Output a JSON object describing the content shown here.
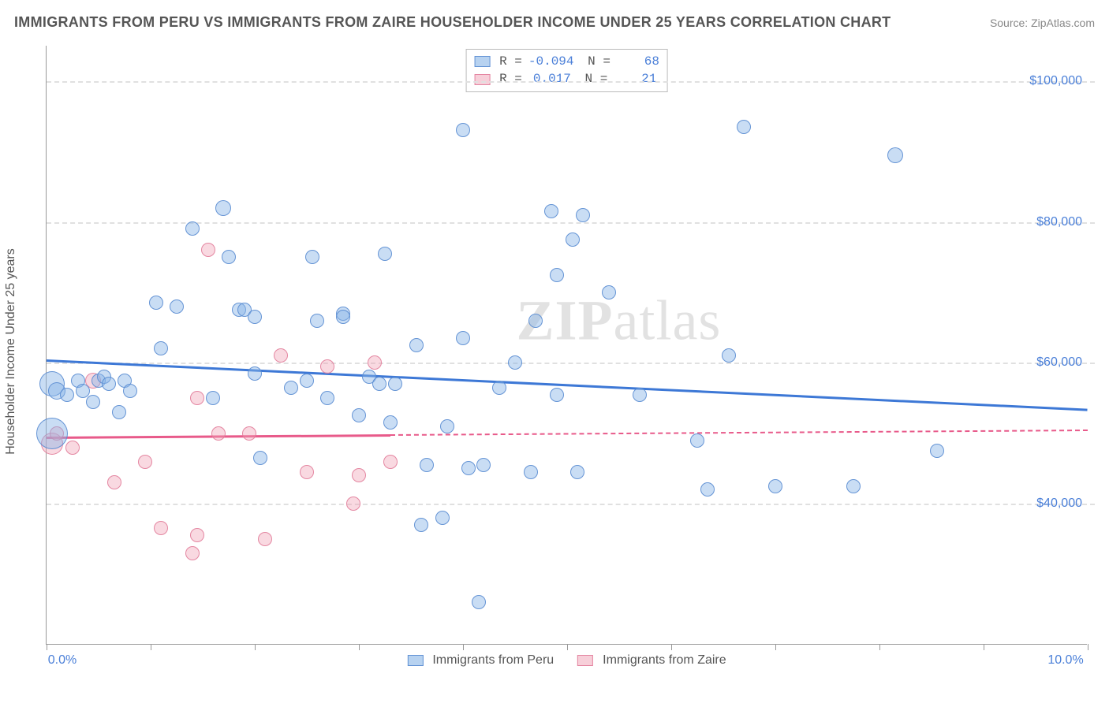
{
  "title": "IMMIGRANTS FROM PERU VS IMMIGRANTS FROM ZAIRE HOUSEHOLDER INCOME UNDER 25 YEARS CORRELATION CHART",
  "source_label": "Source: ",
  "source_name": "ZipAtlas.com",
  "y_axis_label": "Householder Income Under 25 years",
  "watermark_a": "ZIP",
  "watermark_b": "atlas",
  "chart": {
    "type": "scatter",
    "xlim": [
      0,
      10
    ],
    "ylim": [
      20000,
      105000
    ],
    "x_ticks": [
      0,
      1,
      2,
      3,
      4,
      5,
      6,
      7,
      8,
      9,
      10
    ],
    "x_tick_labels": {
      "0": "0.0%",
      "10": "10.0%"
    },
    "y_gridlines": [
      40000,
      60000,
      80000,
      100000
    ],
    "y_tick_labels": {
      "40000": "$40,000",
      "60000": "$60,000",
      "80000": "$80,000",
      "100000": "$100,000"
    },
    "background_color": "#ffffff",
    "grid_color": "#e0e0e0",
    "axis_color": "#999999"
  },
  "series": {
    "peru": {
      "label": "Immigrants from Peru",
      "color_fill": "rgba(135,180,230,0.45)",
      "color_stroke": "rgba(90,140,210,0.9)",
      "R": "-0.094",
      "N": "68",
      "trend": {
        "x1": 0,
        "y1": 60500,
        "x2": 10,
        "y2": 53500,
        "color": "#3d78d6",
        "dash_after_x": 10
      },
      "points": [
        {
          "x": 0.05,
          "y": 57000,
          "r": 16
        },
        {
          "x": 0.05,
          "y": 50000,
          "r": 20
        },
        {
          "x": 0.1,
          "y": 56000,
          "r": 11
        },
        {
          "x": 0.3,
          "y": 57500,
          "r": 9
        },
        {
          "x": 0.35,
          "y": 56000,
          "r": 9
        },
        {
          "x": 0.45,
          "y": 54500,
          "r": 9
        },
        {
          "x": 0.5,
          "y": 57500,
          "r": 9
        },
        {
          "x": 0.55,
          "y": 58000,
          "r": 9
        },
        {
          "x": 0.6,
          "y": 57000,
          "r": 9
        },
        {
          "x": 0.7,
          "y": 53000,
          "r": 9
        },
        {
          "x": 0.75,
          "y": 57500,
          "r": 9
        },
        {
          "x": 0.8,
          "y": 56000,
          "r": 9
        },
        {
          "x": 1.05,
          "y": 68500,
          "r": 9
        },
        {
          "x": 1.1,
          "y": 62000,
          "r": 9
        },
        {
          "x": 1.25,
          "y": 68000,
          "r": 9
        },
        {
          "x": 1.4,
          "y": 79000,
          "r": 9
        },
        {
          "x": 1.6,
          "y": 55000,
          "r": 9
        },
        {
          "x": 1.7,
          "y": 82000,
          "r": 10
        },
        {
          "x": 1.75,
          "y": 75000,
          "r": 9
        },
        {
          "x": 1.85,
          "y": 67500,
          "r": 9
        },
        {
          "x": 1.9,
          "y": 67500,
          "r": 9
        },
        {
          "x": 2.0,
          "y": 58500,
          "r": 9
        },
        {
          "x": 2.05,
          "y": 46500,
          "r": 9
        },
        {
          "x": 2.0,
          "y": 66500,
          "r": 9
        },
        {
          "x": 2.35,
          "y": 56500,
          "r": 9
        },
        {
          "x": 2.5,
          "y": 57500,
          "r": 9
        },
        {
          "x": 2.55,
          "y": 75000,
          "r": 9
        },
        {
          "x": 2.6,
          "y": 66000,
          "r": 9
        },
        {
          "x": 2.7,
          "y": 55000,
          "r": 9
        },
        {
          "x": 2.85,
          "y": 67000,
          "r": 9
        },
        {
          "x": 2.85,
          "y": 66500,
          "r": 9
        },
        {
          "x": 3.0,
          "y": 52500,
          "r": 9
        },
        {
          "x": 3.1,
          "y": 58000,
          "r": 9
        },
        {
          "x": 3.2,
          "y": 57000,
          "r": 9
        },
        {
          "x": 3.25,
          "y": 75500,
          "r": 9
        },
        {
          "x": 3.3,
          "y": 51500,
          "r": 9
        },
        {
          "x": 3.35,
          "y": 57000,
          "r": 9
        },
        {
          "x": 3.55,
          "y": 62500,
          "r": 9
        },
        {
          "x": 3.6,
          "y": 37000,
          "r": 9
        },
        {
          "x": 3.65,
          "y": 45500,
          "r": 9
        },
        {
          "x": 3.8,
          "y": 38000,
          "r": 9
        },
        {
          "x": 3.85,
          "y": 51000,
          "r": 9
        },
        {
          "x": 4.0,
          "y": 63500,
          "r": 9
        },
        {
          "x": 4.0,
          "y": 93000,
          "r": 9
        },
        {
          "x": 4.05,
          "y": 45000,
          "r": 9
        },
        {
          "x": 4.15,
          "y": 26000,
          "r": 9
        },
        {
          "x": 4.2,
          "y": 45500,
          "r": 9
        },
        {
          "x": 4.35,
          "y": 56500,
          "r": 9
        },
        {
          "x": 4.5,
          "y": 60000,
          "r": 9
        },
        {
          "x": 4.65,
          "y": 44500,
          "r": 9
        },
        {
          "x": 4.7,
          "y": 66000,
          "r": 9
        },
        {
          "x": 4.85,
          "y": 81500,
          "r": 9
        },
        {
          "x": 4.9,
          "y": 72500,
          "r": 9
        },
        {
          "x": 4.9,
          "y": 55500,
          "r": 9
        },
        {
          "x": 5.05,
          "y": 77500,
          "r": 9
        },
        {
          "x": 5.1,
          "y": 44500,
          "r": 9
        },
        {
          "x": 5.15,
          "y": 81000,
          "r": 9
        },
        {
          "x": 5.4,
          "y": 70000,
          "r": 9
        },
        {
          "x": 5.7,
          "y": 55500,
          "r": 9
        },
        {
          "x": 6.25,
          "y": 49000,
          "r": 9
        },
        {
          "x": 6.35,
          "y": 42000,
          "r": 9
        },
        {
          "x": 6.55,
          "y": 61000,
          "r": 9
        },
        {
          "x": 6.7,
          "y": 93500,
          "r": 9
        },
        {
          "x": 7.0,
          "y": 42500,
          "r": 9
        },
        {
          "x": 7.75,
          "y": 42500,
          "r": 9
        },
        {
          "x": 8.15,
          "y": 89500,
          "r": 10
        },
        {
          "x": 8.55,
          "y": 47500,
          "r": 9
        },
        {
          "x": 0.2,
          "y": 55500,
          "r": 9
        }
      ]
    },
    "zaire": {
      "label": "Immigrants from Zaire",
      "color_fill": "rgba(240,160,180,0.4)",
      "color_stroke": "rgba(225,120,150,0.85)",
      "R": "0.017",
      "N": "21",
      "trend": {
        "x1": 0,
        "y1": 49500,
        "x2": 10,
        "y2": 50500,
        "color": "#e85a8a",
        "dash_after_x": 3.3
      },
      "points": [
        {
          "x": 0.05,
          "y": 48500,
          "r": 14
        },
        {
          "x": 0.1,
          "y": 50000,
          "r": 9
        },
        {
          "x": 0.25,
          "y": 48000,
          "r": 9
        },
        {
          "x": 0.45,
          "y": 57500,
          "r": 10
        },
        {
          "x": 0.65,
          "y": 43000,
          "r": 9
        },
        {
          "x": 0.95,
          "y": 46000,
          "r": 9
        },
        {
          "x": 1.1,
          "y": 36500,
          "r": 9
        },
        {
          "x": 1.4,
          "y": 33000,
          "r": 9
        },
        {
          "x": 1.45,
          "y": 55000,
          "r": 9
        },
        {
          "x": 1.45,
          "y": 35500,
          "r": 9
        },
        {
          "x": 1.55,
          "y": 76000,
          "r": 9
        },
        {
          "x": 1.65,
          "y": 50000,
          "r": 9
        },
        {
          "x": 1.95,
          "y": 50000,
          "r": 9
        },
        {
          "x": 2.1,
          "y": 35000,
          "r": 9
        },
        {
          "x": 2.25,
          "y": 61000,
          "r": 9
        },
        {
          "x": 2.5,
          "y": 44500,
          "r": 9
        },
        {
          "x": 2.7,
          "y": 59500,
          "r": 9
        },
        {
          "x": 2.95,
          "y": 40000,
          "r": 9
        },
        {
          "x": 3.0,
          "y": 44000,
          "r": 9
        },
        {
          "x": 3.15,
          "y": 60000,
          "r": 9
        },
        {
          "x": 3.3,
          "y": 46000,
          "r": 9
        }
      ]
    }
  }
}
